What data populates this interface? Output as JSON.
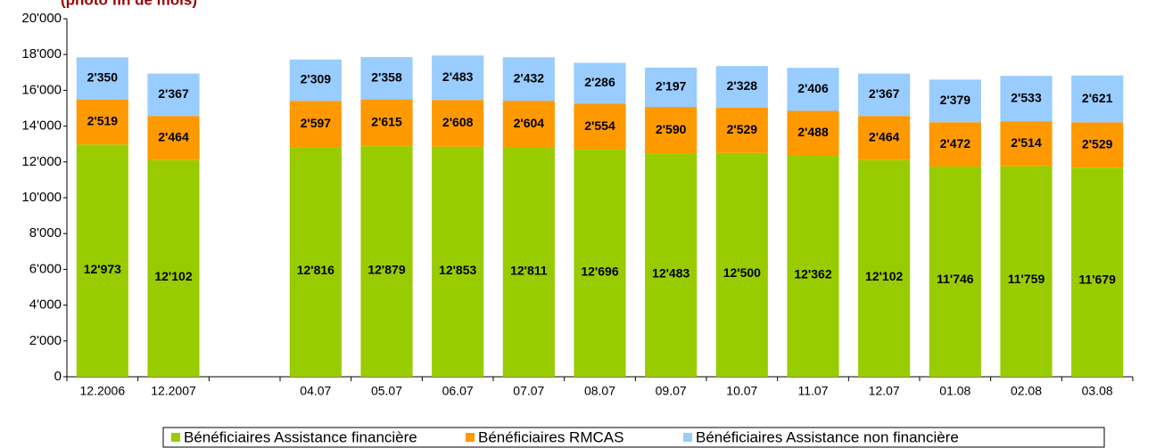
{
  "chart_data": {
    "type": "stacked_bar",
    "title": "(photo fin de mois)",
    "categories": [
      "12.2006",
      "12.2007",
      null,
      "04.07",
      "05.07",
      "06.07",
      "07.07",
      "08.07",
      "09.07",
      "10.07",
      "11.07",
      "12.07",
      "01.08",
      "02.08",
      "03.08"
    ],
    "series": [
      {
        "name": "Bénéficiaires Assistance financière",
        "color": "#99cc00",
        "values": [
          12973,
          12102,
          null,
          12816,
          12879,
          12853,
          12811,
          12696,
          12483,
          12500,
          12362,
          12102,
          11746,
          11759,
          11679
        ],
        "value_labels": [
          "12'973",
          "12'102",
          null,
          "12'816",
          "12'879",
          "12'853",
          "12'811",
          "12'696",
          "12'483",
          "12'500",
          "12'362",
          "12'102",
          "11'746",
          "11'759",
          "11'679"
        ]
      },
      {
        "name": "Bénéficiaires RMCAS",
        "color": "#ff9900",
        "values": [
          2519,
          2464,
          null,
          2597,
          2615,
          2608,
          2604,
          2554,
          2590,
          2529,
          2488,
          2464,
          2472,
          2514,
          2529
        ],
        "value_labels": [
          "2'519",
          "2'464",
          null,
          "2'597",
          "2'615",
          "2'608",
          "2'604",
          "2'554",
          "2'590",
          "2'529",
          "2'488",
          "2'464",
          "2'472",
          "2'514",
          "2'529"
        ]
      },
      {
        "name": "Bénéficiaires Assistance non financière",
        "color": "#99ccff",
        "values": [
          2350,
          2367,
          null,
          2309,
          2358,
          2483,
          2432,
          2286,
          2197,
          2328,
          2406,
          2367,
          2379,
          2533,
          2621
        ],
        "value_labels": [
          "2'350",
          "2'367",
          null,
          "2'309",
          "2'358",
          "2'483",
          "2'432",
          "2'286",
          "2'197",
          "2'328",
          "2'406",
          "2'367",
          "2'379",
          "2'533",
          "2'621"
        ]
      }
    ],
    "ylim": [
      0,
      20000
    ],
    "yticks": [
      0,
      {
        "value": 2000,
        "label": "2'000"
      },
      {
        "value": 4000,
        "label": "4'000"
      },
      {
        "value": 6000,
        "label": "6'000"
      },
      {
        "value": 8000,
        "label": "8'000"
      },
      {
        "value": 10000,
        "label": "10'000"
      },
      {
        "value": 12000,
        "label": "12'000"
      },
      {
        "value": 14000,
        "label": "14'000"
      },
      {
        "value": 16000,
        "label": "16'000"
      },
      {
        "value": 18000,
        "label": "18'000"
      },
      {
        "value": 20000,
        "label": "20'000"
      }
    ],
    "grid": false
  }
}
